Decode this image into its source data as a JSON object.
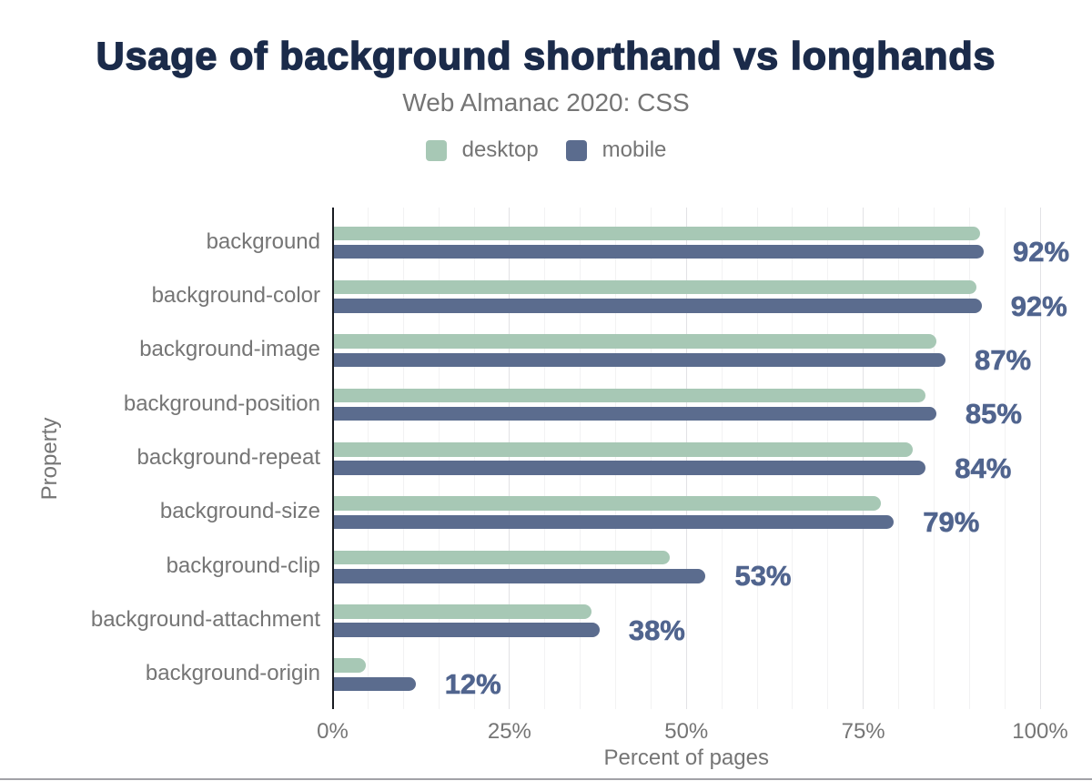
{
  "title": "Usage of background shorthand vs longhands",
  "subtitle": "Web Almanac 2020: CSS",
  "legend": {
    "items": [
      {
        "label": "desktop",
        "color": "#a7c8b5"
      },
      {
        "label": "mobile",
        "color": "#5b6c8e"
      }
    ]
  },
  "colors": {
    "title": "#1b2b4a",
    "text_gray": "#757575",
    "desktop_bar": "#a7c8b5",
    "mobile_bar": "#5b6c8e",
    "value_label": "#50648e",
    "axis_line": "#191c22",
    "minor_gridline": "#f2f2f3",
    "major_gridline": "#e2e2e5",
    "bottom_rule": "#a2a2a7"
  },
  "chart_data": {
    "type": "bar",
    "orientation": "horizontal",
    "title": "Usage of background shorthand vs longhands",
    "subtitle": "Web Almanac 2020: CSS",
    "categories": [
      "background",
      "background-color",
      "background-image",
      "background-position",
      "background-repeat",
      "background-size",
      "background-clip",
      "background-attachment",
      "background-origin"
    ],
    "series": [
      {
        "name": "desktop",
        "color": "#a7c8b5",
        "values": [
          91.4,
          90.9,
          85.2,
          83.7,
          81.9,
          77.4,
          47.5,
          36.5,
          4.6
        ]
      },
      {
        "name": "mobile",
        "color": "#5b6c8e",
        "values": [
          91.9,
          91.6,
          86.5,
          85.2,
          83.7,
          79.2,
          52.6,
          37.6,
          11.6
        ]
      }
    ],
    "value_labels": [
      "92%",
      "92%",
      "87%",
      "85%",
      "84%",
      "79%",
      "53%",
      "38%",
      "12%"
    ],
    "xlabel": "Percent of pages",
    "ylabel": "Property",
    "xlim": [
      0,
      100
    ],
    "x_ticks": [
      {
        "value": 0,
        "label": "0%"
      },
      {
        "value": 25,
        "label": "25%"
      },
      {
        "value": 50,
        "label": "50%"
      },
      {
        "value": 75,
        "label": "75%"
      },
      {
        "value": 100,
        "label": "100%"
      }
    ],
    "gridlines": {
      "minor_step": 5,
      "major_step": 25,
      "grid_on": true
    },
    "legend_position": "top"
  }
}
